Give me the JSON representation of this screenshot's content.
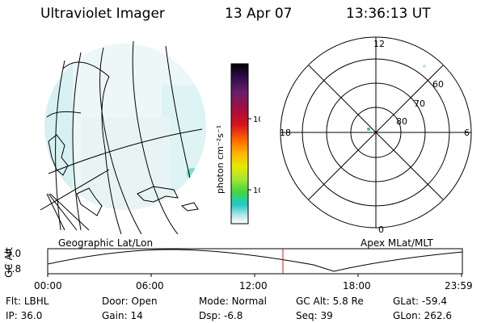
{
  "header": {
    "instrument": "Ultraviolet Imager",
    "date": "13 Apr 07",
    "time": "13:36:13 UT"
  },
  "colorbar": {
    "units_label": "photon cm⁻²s⁻¹",
    "tick_labels": [
      "100",
      "10"
    ],
    "colors": [
      "#000000",
      "#2a0d4a",
      "#6b1f66",
      "#a01040",
      "#d81020",
      "#ff6a00",
      "#ffb400",
      "#e8e800",
      "#a8e830",
      "#40d840",
      "#20c8c8",
      "#b8e8e8",
      "#ffffff"
    ]
  },
  "polar_plot": {
    "mlt_labels": [
      "12",
      "18",
      "6",
      "0"
    ],
    "lat_labels": [
      "60",
      "70",
      "80"
    ]
  },
  "orbit_panel": {
    "left_label": "Geographic Lat/Lon",
    "right_label": "Apex MLat/MLT",
    "y_axis_label": "GC Alt",
    "y_tick_labels": [
      "9.0",
      "1.8"
    ],
    "x_tick_labels": [
      "00:00",
      "06:00",
      "12:00",
      "18:00",
      "23:59"
    ]
  },
  "status": {
    "row1": [
      {
        "key": "Flt:",
        "value": "LBHL"
      },
      {
        "key": "Door:",
        "value": "Open"
      },
      {
        "key": "Mode:",
        "value": "Normal"
      },
      {
        "key": "GC Alt:",
        "value": "5.8 Re"
      },
      {
        "key": "GLat:",
        "value": "-59.4"
      }
    ],
    "row2": [
      {
        "key": "IP:",
        "value": "36.0"
      },
      {
        "key": "Gain:",
        "value": "14"
      },
      {
        "key": "Dsp:",
        "value": "-6.8"
      },
      {
        "key": "Seq:",
        "value": "39"
      },
      {
        "key": "GLon:",
        "value": "262.6"
      }
    ]
  }
}
